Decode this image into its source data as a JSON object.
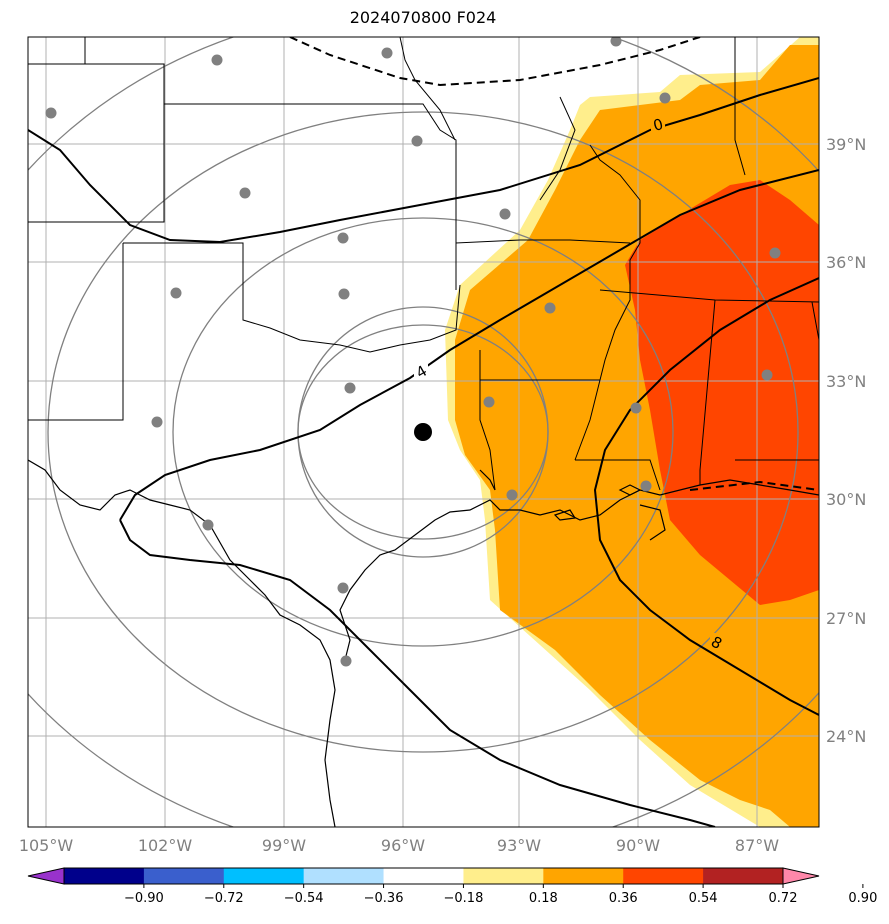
{
  "title": "2024070800 F024",
  "lon_labels": [
    "105°W",
    "102°W",
    "99°W",
    "96°W",
    "93°W",
    "90°W",
    "87°W"
  ],
  "lat_labels": [
    "39°N",
    "36°N",
    "33°N",
    "30°N",
    "27°N",
    "24°N"
  ],
  "contour_labels": [
    "0",
    "4",
    "8"
  ],
  "colorbar": {
    "ticks": [
      "−0.90",
      "−0.72",
      "−0.54",
      "−0.36",
      "−0.18",
      "0.18",
      "0.36",
      "0.54",
      "0.72",
      "0.90"
    ],
    "colors": [
      "#9932cc",
      "#00008b",
      "#3a5fcd",
      "#00bfff",
      "#b0e0ff",
      "#ffffff",
      "#ffee8c",
      "#ffa500",
      "#ff4500",
      "#b22222",
      "#ff88aa"
    ]
  },
  "fill_colors": {
    "light": "#ffee8c",
    "orange": "#ffa500",
    "red": "#ff4500"
  }
}
